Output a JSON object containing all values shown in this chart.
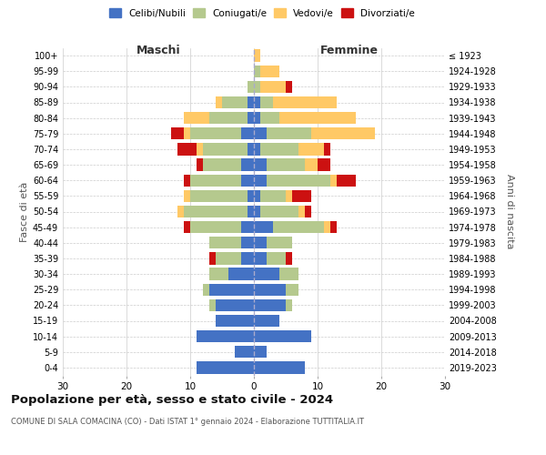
{
  "age_groups": [
    "0-4",
    "5-9",
    "10-14",
    "15-19",
    "20-24",
    "25-29",
    "30-34",
    "35-39",
    "40-44",
    "45-49",
    "50-54",
    "55-59",
    "60-64",
    "65-69",
    "70-74",
    "75-79",
    "80-84",
    "85-89",
    "90-94",
    "95-99",
    "100+"
  ],
  "birth_years": [
    "2019-2023",
    "2014-2018",
    "2009-2013",
    "2004-2008",
    "1999-2003",
    "1994-1998",
    "1989-1993",
    "1984-1988",
    "1979-1983",
    "1974-1978",
    "1969-1973",
    "1964-1968",
    "1959-1963",
    "1954-1958",
    "1949-1953",
    "1944-1948",
    "1939-1943",
    "1934-1938",
    "1929-1933",
    "1924-1928",
    "≤ 1923"
  ],
  "maschi": {
    "celibi": [
      9,
      3,
      9,
      6,
      6,
      7,
      4,
      2,
      2,
      2,
      1,
      1,
      2,
      2,
      1,
      2,
      1,
      1,
      0,
      0,
      0
    ],
    "coniugati": [
      0,
      0,
      0,
      0,
      1,
      1,
      3,
      4,
      5,
      8,
      10,
      9,
      8,
      6,
      7,
      8,
      6,
      4,
      1,
      0,
      0
    ],
    "vedovi": [
      0,
      0,
      0,
      0,
      0,
      0,
      0,
      0,
      0,
      0,
      1,
      1,
      0,
      0,
      1,
      1,
      4,
      1,
      0,
      0,
      0
    ],
    "divorziati": [
      0,
      0,
      0,
      0,
      0,
      0,
      0,
      1,
      0,
      1,
      0,
      0,
      1,
      1,
      3,
      2,
      0,
      0,
      0,
      0,
      0
    ]
  },
  "femmine": {
    "nubili": [
      8,
      2,
      9,
      4,
      5,
      5,
      4,
      2,
      2,
      3,
      1,
      1,
      2,
      2,
      1,
      2,
      1,
      1,
      0,
      0,
      0
    ],
    "coniugate": [
      0,
      0,
      0,
      0,
      1,
      2,
      3,
      3,
      4,
      8,
      6,
      4,
      10,
      6,
      6,
      7,
      3,
      2,
      1,
      1,
      0
    ],
    "vedove": [
      0,
      0,
      0,
      0,
      0,
      0,
      0,
      0,
      0,
      1,
      1,
      1,
      1,
      2,
      4,
      10,
      12,
      10,
      4,
      3,
      1
    ],
    "divorziate": [
      0,
      0,
      0,
      0,
      0,
      0,
      0,
      1,
      0,
      1,
      1,
      3,
      3,
      2,
      1,
      0,
      0,
      0,
      1,
      0,
      0
    ]
  },
  "colors": {
    "celibi": "#4472c4",
    "coniugati": "#b5c98e",
    "vedovi": "#ffc966",
    "divorziati": "#cc1111"
  },
  "xlim": 30,
  "title": "Popolazione per età, sesso e stato civile - 2024",
  "subtitle": "COMUNE DI SALA COMACINA (CO) - Dati ISTAT 1° gennaio 2024 - Elaborazione TUTTITALIA.IT",
  "xlabel_left": "Maschi",
  "xlabel_right": "Femmine",
  "ylabel_left": "Fasce di età",
  "ylabel_right": "Anni di nascita",
  "legend_labels": [
    "Celibi/Nubili",
    "Coniugati/e",
    "Vedovi/e",
    "Divorziati/e"
  ],
  "bg_color": "#ffffff",
  "grid_color": "#cccccc"
}
